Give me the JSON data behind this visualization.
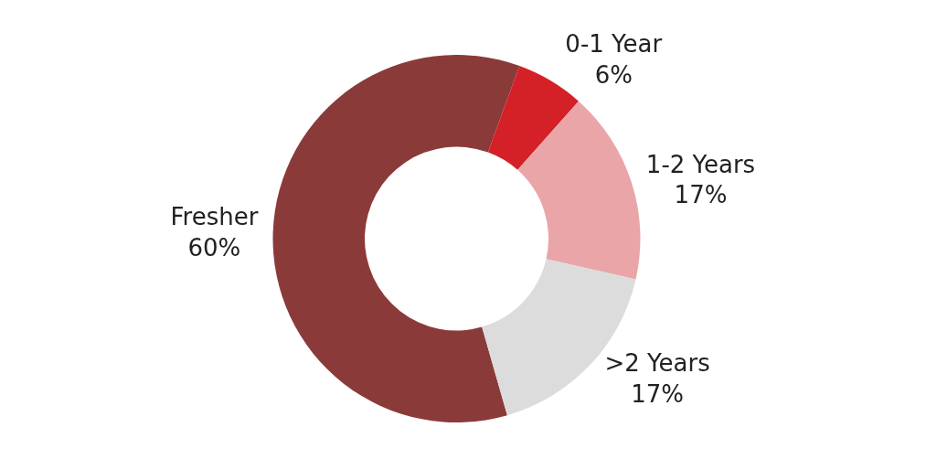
{
  "chart_data": {
    "type": "donut",
    "categories": [
      "Fresher",
      "0-1 Year",
      "1-2 Years",
      ">2 Years"
    ],
    "values": [
      60,
      6,
      17,
      17
    ],
    "colors": [
      "#8b3a3a",
      "#d42027",
      "#eaa5a8",
      "#dcdcdc"
    ],
    "value_labels": [
      "60%",
      "6%",
      "17%",
      "17%"
    ]
  }
}
